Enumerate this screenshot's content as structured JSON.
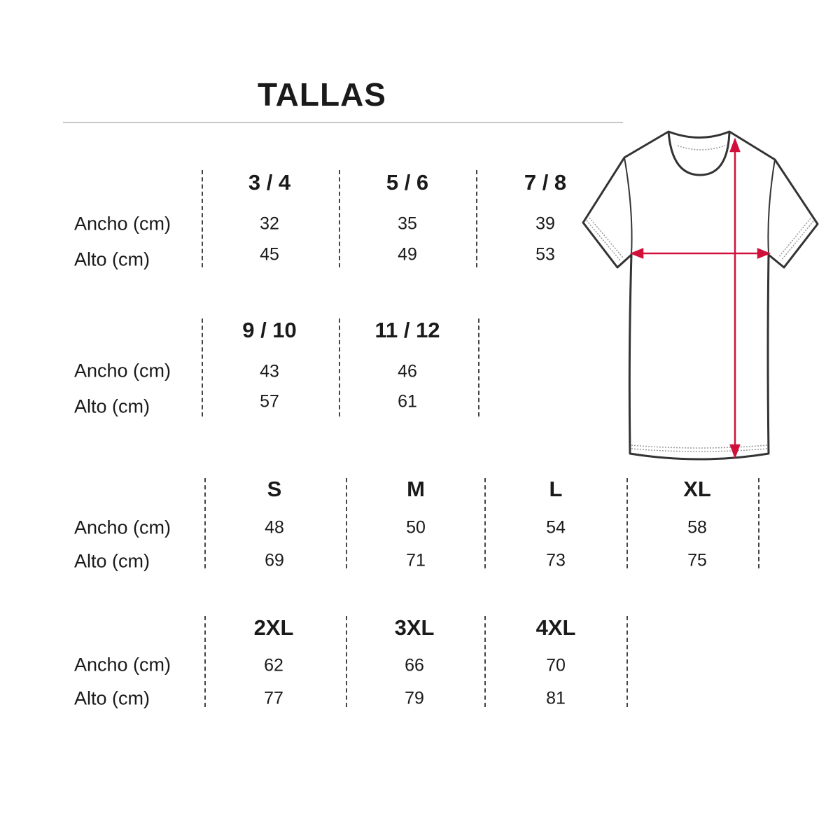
{
  "title": "TALLAS",
  "row_labels": {
    "width": "Ancho (cm)",
    "height": "Alto (cm)"
  },
  "groups": [
    {
      "sizes": [
        {
          "size": "3 / 4",
          "ancho": "32",
          "alto": "45"
        },
        {
          "size": "5 / 6",
          "ancho": "35",
          "alto": "49"
        },
        {
          "size": "7 / 8",
          "ancho": "39",
          "alto": "53"
        }
      ]
    },
    {
      "sizes": [
        {
          "size": "9 / 10",
          "ancho": "43",
          "alto": "57"
        },
        {
          "size": "11 / 12",
          "ancho": "46",
          "alto": "61"
        }
      ]
    },
    {
      "sizes": [
        {
          "size": "S",
          "ancho": "48",
          "alto": "69"
        },
        {
          "size": "M",
          "ancho": "50",
          "alto": "71"
        },
        {
          "size": "L",
          "ancho": "54",
          "alto": "73"
        },
        {
          "size": "XL",
          "ancho": "58",
          "alto": "75"
        }
      ]
    },
    {
      "sizes": [
        {
          "size": "2XL",
          "ancho": "62",
          "alto": "77"
        },
        {
          "size": "3XL",
          "ancho": "66",
          "alto": "79"
        },
        {
          "size": "4XL",
          "ancho": "70",
          "alto": "81"
        }
      ]
    }
  ],
  "colors": {
    "arrow": "#d0103a",
    "outline": "#333333",
    "rule": "#c8c8c8"
  },
  "illustration": "t-shirt-measurement-icon"
}
